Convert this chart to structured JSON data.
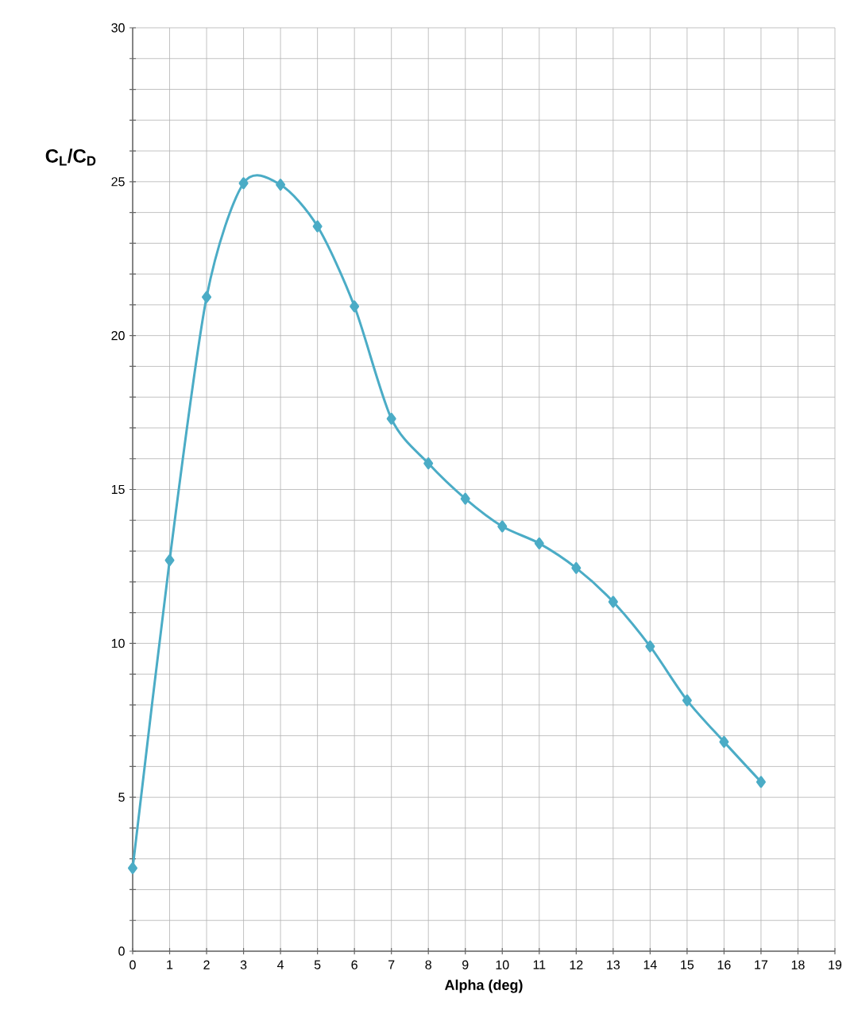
{
  "chart_data": {
    "type": "line",
    "xlabel": "**Alpha (deg)**",
    "ylabel": "**C$_{L}$/C$_{D}$**",
    "x": [
      0,
      1,
      2,
      3,
      4,
      5,
      6,
      7,
      8,
      9,
      10,
      11,
      12,
      13,
      14,
      15,
      16,
      17
    ],
    "series": [
      {
        "color": "#4bacc6",
        "values": [
          2.7,
          12.7,
          21.25,
          24.95,
          24.9,
          23.55,
          20.95,
          17.3,
          15.85,
          14.7,
          13.8,
          13.25,
          12.45,
          11.35,
          9.9,
          8.15,
          6.8,
          5.5
        ]
      }
    ],
    "xlim": [
      0,
      19
    ],
    "ylim": [
      0,
      30
    ],
    "xticks": [
      0,
      1,
      2,
      3,
      4,
      5,
      6,
      7,
      8,
      9,
      10,
      11,
      12,
      13,
      14,
      15,
      16,
      17,
      18,
      19
    ],
    "yticks": [
      0,
      {
        "value": 1,
        "label": null
      },
      {
        "value": 2,
        "label": null
      },
      {
        "value": 3,
        "label": null
      },
      {
        "value": 4,
        "label": null
      },
      5,
      {
        "value": 6,
        "label": null
      },
      {
        "value": 7,
        "label": null
      },
      {
        "value": 8,
        "label": null
      },
      {
        "value": 9,
        "label": null
      },
      10,
      {
        "value": 11,
        "label": null
      },
      {
        "value": 12,
        "label": null
      },
      {
        "value": 13,
        "label": null
      },
      {
        "value": 14,
        "label": null
      },
      15,
      {
        "value": 16,
        "label": null
      },
      {
        "value": 17,
        "label": null
      },
      {
        "value": 18,
        "label": null
      },
      {
        "value": 19,
        "label": null
      },
      20,
      {
        "value": 21,
        "label": null
      },
      {
        "value": 22,
        "label": null
      },
      {
        "value": 23,
        "label": null
      },
      {
        "value": 24,
        "label": null
      },
      25,
      {
        "value": 26,
        "label": null
      },
      {
        "value": 27,
        "label": null
      },
      {
        "value": 28,
        "label": null
      },
      {
        "value": 29,
        "label": null
      },
      30
    ],
    "grid": true,
    "marker": "diamond",
    "line_style": "solid"
  }
}
